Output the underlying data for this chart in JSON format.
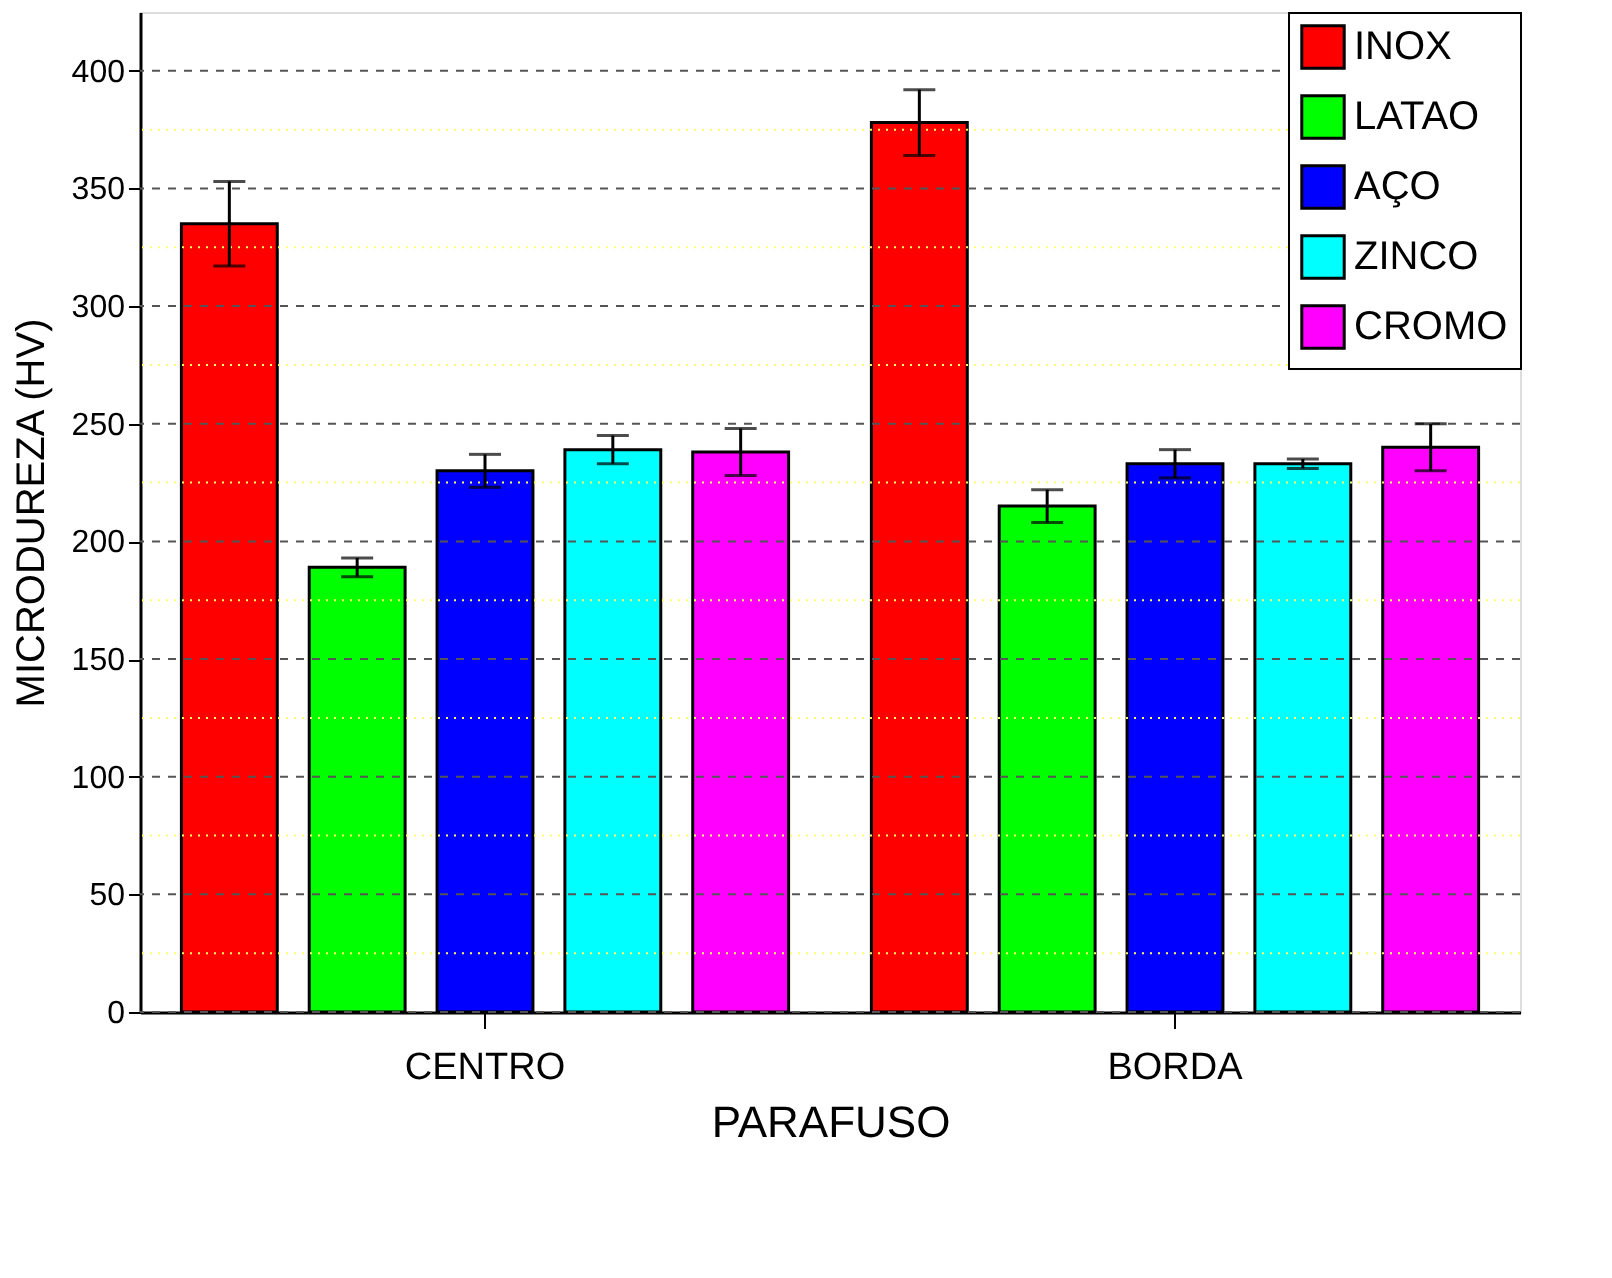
{
  "chart_data": {
    "type": "bar",
    "xlabel": "PARAFUSO",
    "ylabel": "MICRODUREZA (HV)",
    "categories": [
      "CENTRO",
      "BORDA"
    ],
    "series": [
      {
        "name": "INOX",
        "color": "#ff0000",
        "values": [
          335,
          378
        ],
        "errors": [
          18,
          14
        ]
      },
      {
        "name": "LATAO",
        "color": "#00ff00",
        "values": [
          189,
          215
        ],
        "errors": [
          4,
          7
        ]
      },
      {
        "name": "AÇO",
        "color": "#0000ff",
        "values": [
          230,
          233
        ],
        "errors": [
          7,
          6
        ]
      },
      {
        "name": "ZINCO",
        "color": "#00ffff",
        "values": [
          239,
          233
        ],
        "errors": [
          6,
          2
        ]
      },
      {
        "name": "CROMO",
        "color": "#ff00ff",
        "values": [
          238,
          240
        ],
        "errors": [
          10,
          10
        ]
      }
    ],
    "ylim": [
      0,
      425
    ],
    "yticks": [
      0,
      {
        "value": 25,
        "label": null
      },
      50,
      {
        "value": 75,
        "label": null
      },
      100,
      {
        "value": 125,
        "label": null
      },
      150,
      {
        "value": 175,
        "label": null
      },
      200,
      {
        "value": 225,
        "label": null
      },
      250,
      {
        "value": 275,
        "label": null
      },
      300,
      {
        "value": 325,
        "label": null
      },
      350,
      {
        "value": 375,
        "label": null
      },
      400
    ],
    "grid": "y",
    "legend": "top right"
  }
}
